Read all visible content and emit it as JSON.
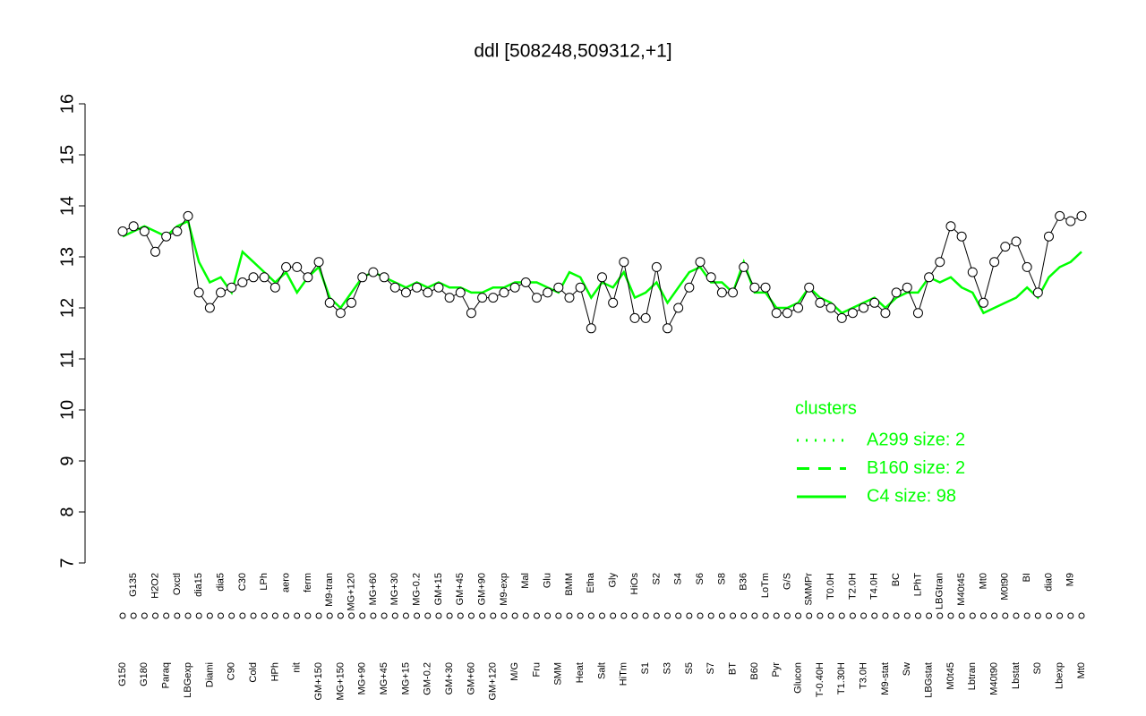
{
  "chart_data": {
    "type": "line",
    "title": "ddl [508248,509312,+1]",
    "categories": [
      "G150",
      "G135",
      "G180",
      "H2O2",
      "Paraq",
      "Oxctl",
      "LBGexp",
      "dia15",
      "Diami",
      "dia5",
      "C90",
      "C30",
      "Cold",
      "LPh",
      "HPh",
      "aero",
      "nit",
      "ferm",
      "GM+150",
      "M9-tran",
      "MG+150",
      "MG+120",
      "MG+90",
      "MG+60",
      "MG+45",
      "MG+30",
      "MG+15",
      "MG-0.2",
      "GM-0.2",
      "GM+15",
      "GM+30",
      "GM+45",
      "GM+60",
      "GM+90",
      "GM+120",
      "M9-exp",
      "M/G",
      "Mal",
      "Fru",
      "Glu",
      "SMM",
      "BMM",
      "Heat",
      "Etha",
      "Salt",
      "Gly",
      "HiTm",
      "HiOs",
      "S1",
      "S2",
      "S3",
      "S4",
      "S5",
      "S6",
      "S7",
      "S8",
      "BT",
      "B36",
      "B60",
      "LoTm",
      "Pyr",
      "G/S",
      "Glucon",
      "SMMPr",
      "T-0.40H",
      "T0.0H",
      "T1.30H",
      "T2.0H",
      "T3.0H",
      "T4.0H",
      "M9-stat",
      "BC",
      "Sw",
      "LPhT",
      "LBGstat",
      "LBGtran",
      "M0t45",
      "M40t45",
      "Lbtran",
      "Mt0",
      "M40t90",
      "M0t90",
      "Lbstat",
      "BI",
      "S0",
      "dia0",
      "Lbexp",
      "M9",
      "Mt0"
    ],
    "series": [
      {
        "color": "#000000",
        "values": [
          13.5,
          13.6,
          13.5,
          13.1,
          13.4,
          13.5,
          13.8,
          12.3,
          12.0,
          12.3,
          12.4,
          12.5,
          12.6,
          12.6,
          12.4,
          12.8,
          12.8,
          12.6,
          12.9,
          12.1,
          11.9,
          12.1,
          12.6,
          12.7,
          12.6,
          12.4,
          12.3,
          12.4,
          12.3,
          12.4,
          12.2,
          12.3,
          11.9,
          12.2,
          12.2,
          12.3,
          12.4,
          12.5,
          12.2,
          12.3,
          12.4,
          12.2,
          12.4,
          11.6,
          12.6,
          12.1,
          12.9,
          11.8,
          11.8,
          12.8,
          11.6,
          12.0,
          12.4,
          12.9,
          12.6,
          12.3,
          12.3,
          12.8,
          12.4,
          12.4,
          11.9,
          11.9,
          12.0,
          12.4,
          12.1,
          12.0,
          11.8,
          11.9,
          12.0,
          12.1,
          11.9,
          12.3,
          12.4,
          11.9,
          12.6,
          12.9,
          13.6,
          13.4,
          12.7,
          12.1,
          12.9,
          13.2,
          13.3,
          12.8,
          12.3,
          13.4,
          13.8,
          13.7,
          13.8
        ]
      },
      {
        "color": "#00ff00",
        "values": [
          13.4,
          13.5,
          13.6,
          13.5,
          13.4,
          13.6,
          13.7,
          12.9,
          12.5,
          12.6,
          12.3,
          13.1,
          12.9,
          12.7,
          12.5,
          12.7,
          12.3,
          12.6,
          12.8,
          12.2,
          12.0,
          12.3,
          12.6,
          12.7,
          12.6,
          12.5,
          12.4,
          12.5,
          12.4,
          12.5,
          12.4,
          12.4,
          12.3,
          12.3,
          12.4,
          12.4,
          12.5,
          12.5,
          12.5,
          12.4,
          12.3,
          12.7,
          12.6,
          12.2,
          12.5,
          12.4,
          12.7,
          12.2,
          12.3,
          12.5,
          12.1,
          12.4,
          12.7,
          12.8,
          12.5,
          12.5,
          12.3,
          12.9,
          12.3,
          12.3,
          12.0,
          12.0,
          12.1,
          12.4,
          12.2,
          12.1,
          11.9,
          12.0,
          12.1,
          12.2,
          12.0,
          12.2,
          12.3,
          12.3,
          12.6,
          12.5,
          12.6,
          12.4,
          12.3,
          11.9,
          12.0,
          12.1,
          12.2,
          12.4,
          12.2,
          12.6,
          12.8,
          12.9,
          13.1
        ]
      }
    ],
    "ylim": [
      7,
      16
    ],
    "yticks": [
      7,
      8,
      9,
      10,
      11,
      12,
      13,
      14,
      15,
      16
    ],
    "legend": {
      "title": "clusters",
      "color": "#00ff00",
      "items": [
        {
          "name": "A299 size: 2",
          "dash": "dotted"
        },
        {
          "name": "B160 size: 2",
          "dash": "dashed"
        },
        {
          "name": "C4 size: 98",
          "dash": "solid"
        }
      ]
    }
  }
}
